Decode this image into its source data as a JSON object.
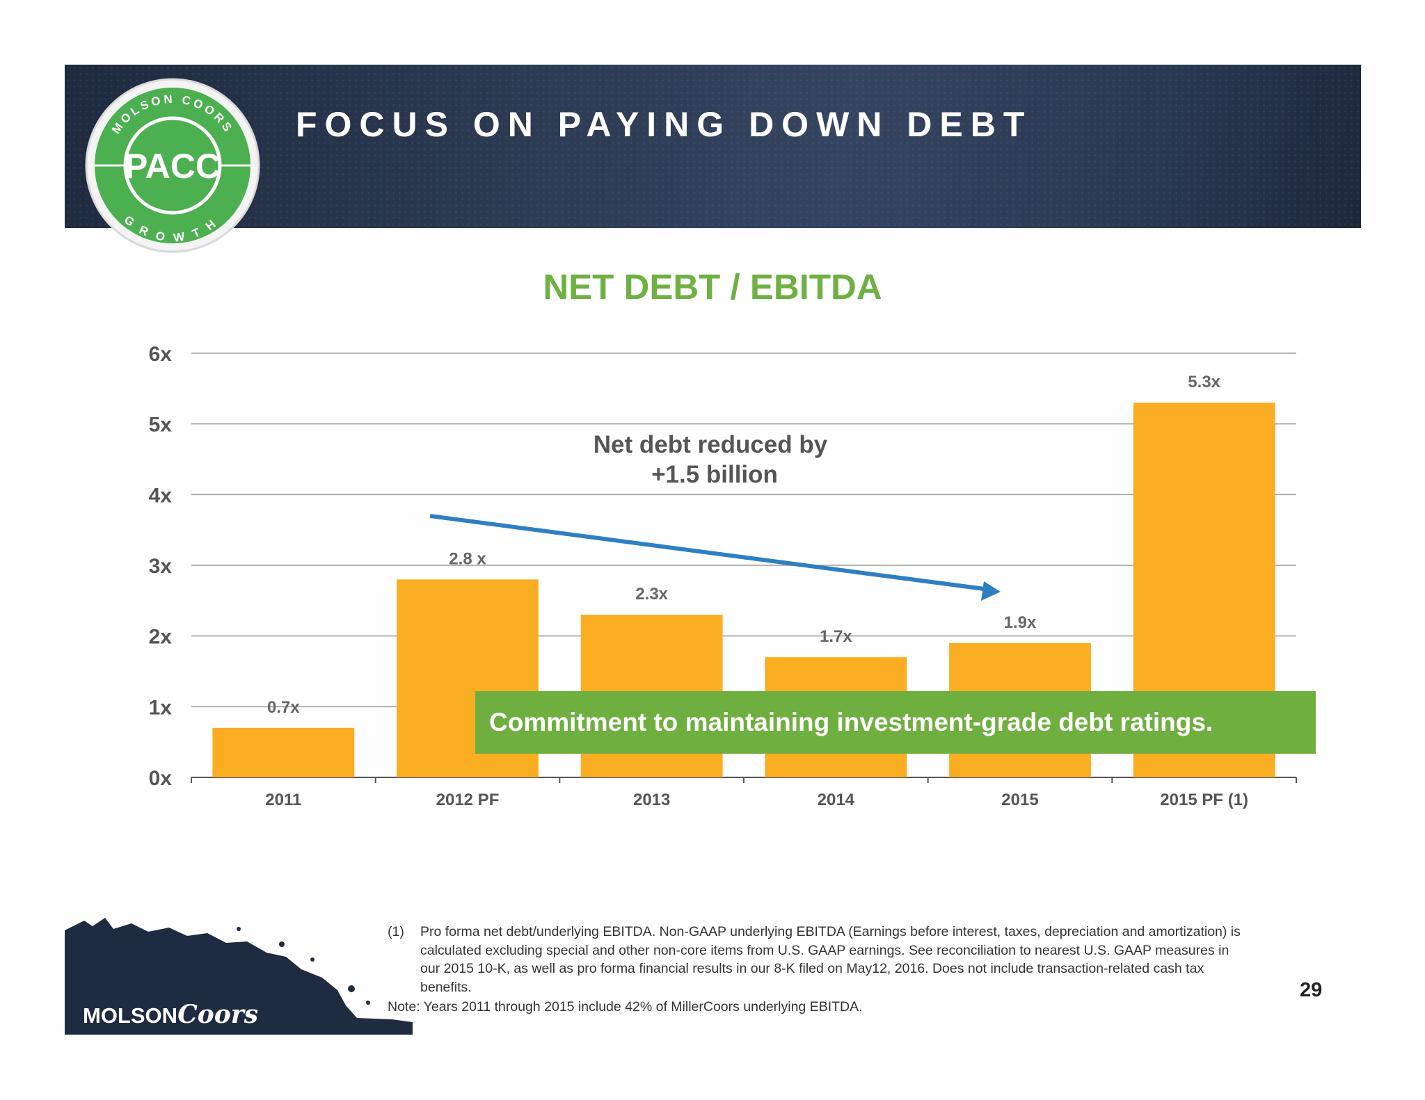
{
  "header": {
    "title": "FOCUS ON PAYING DOWN DEBT"
  },
  "badge": {
    "top_text": "MOLSON COORS",
    "center_text": "PACC",
    "bottom_text": "GROWTH",
    "ring_color": "#4caf50"
  },
  "chart_data": {
    "type": "bar",
    "title": "NET DEBT / EBITDA",
    "categories": [
      "2011",
      "2012 PF",
      "2013",
      "2014",
      "2015",
      "2015 PF (1)"
    ],
    "values": [
      0.7,
      2.8,
      2.3,
      1.7,
      1.9,
      5.3
    ],
    "data_labels": [
      "0.7x",
      "2.8 x",
      "2.3x",
      "1.7x",
      "1.9x",
      "5.3x"
    ],
    "ylim": [
      0,
      6
    ],
    "y_ticks": [
      "0x",
      "1x",
      "2x",
      "3x",
      "4x",
      "5x",
      "6x"
    ],
    "grid": true,
    "bar_color": "#fbad22",
    "annotation": {
      "lines": [
        "Net debt reduced by",
        "+1.5 billion"
      ],
      "arrow_color": "#2e7fc2"
    }
  },
  "callout": {
    "text": "Commitment to maintaining investment-grade debt ratings.",
    "color": "#6faf3f"
  },
  "footnote": {
    "number": "(1)",
    "text": "Pro forma net debt/underlying EBITDA.  Non-GAAP underlying EBITDA (Earnings before interest, taxes, depreciation and amortization) is calculated excluding special and other non-core items from U.S. GAAP earnings. See reconciliation to nearest U.S. GAAP measures in our 2015 10-K, as well as pro forma financial results in our 8-K filed on May12, 2016. Does not include transaction-related cash tax benefits."
  },
  "note": "Note: Years 2011 through 2015 include 42% of MillerCoors underlying EBITDA.",
  "page_number": "29",
  "logo": {
    "word1": "MOLSON",
    "word2": "Coors"
  }
}
